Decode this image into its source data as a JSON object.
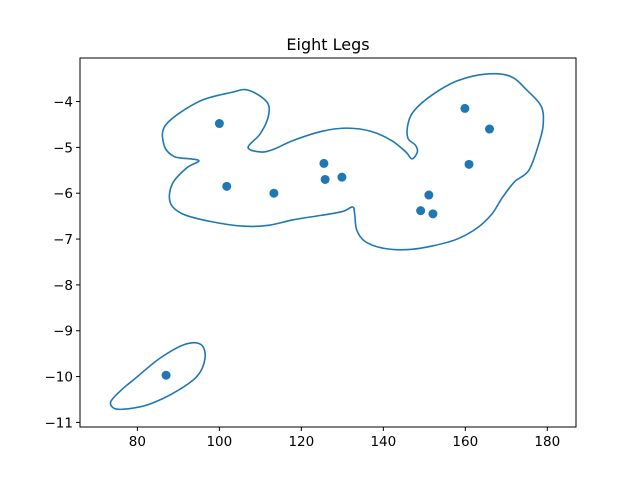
{
  "chart_data": {
    "type": "scatter",
    "title": "Eight Legs",
    "xlabel": "",
    "ylabel": "",
    "xlim": [
      66,
      187
    ],
    "ylim": [
      -11.1,
      -3.05
    ],
    "xticks": [
      80,
      100,
      120,
      140,
      160,
      180
    ],
    "yticks": [
      -4,
      -5,
      -6,
      -7,
      -8,
      -9,
      -10,
      -11
    ],
    "grid": false,
    "legend": "none",
    "colors": {
      "series": "#1f77b4",
      "axes": "#000000",
      "background": "#ffffff"
    },
    "points": [
      {
        "x": 87.0,
        "y": -9.97
      },
      {
        "x": 100.0,
        "y": -4.48
      },
      {
        "x": 101.8,
        "y": -5.85
      },
      {
        "x": 113.3,
        "y": -6.0
      },
      {
        "x": 125.5,
        "y": -5.35
      },
      {
        "x": 125.8,
        "y": -5.7
      },
      {
        "x": 129.9,
        "y": -5.65
      },
      {
        "x": 149.1,
        "y": -6.38
      },
      {
        "x": 151.1,
        "y": -6.04
      },
      {
        "x": 152.1,
        "y": -6.45
      },
      {
        "x": 159.9,
        "y": -4.15
      },
      {
        "x": 160.9,
        "y": -5.37
      },
      {
        "x": 165.9,
        "y": -4.6
      }
    ],
    "contours": [
      {
        "closed": true,
        "path": [
          [
            87,
            -4.5
          ],
          [
            95,
            -4.0
          ],
          [
            103,
            -3.8
          ],
          [
            107,
            -3.75
          ],
          [
            111.5,
            -4.0
          ],
          [
            112,
            -4.3
          ],
          [
            110,
            -4.7
          ],
          [
            107,
            -5.0
          ],
          [
            110,
            -5.1
          ],
          [
            113,
            -5.05
          ],
          [
            118,
            -4.85
          ],
          [
            125,
            -4.65
          ],
          [
            131,
            -4.58
          ],
          [
            137,
            -4.65
          ],
          [
            142,
            -4.85
          ],
          [
            145.5,
            -5.1
          ],
          [
            147,
            -5.25
          ],
          [
            148.3,
            -5.1
          ],
          [
            147.8,
            -4.95
          ],
          [
            146,
            -4.8
          ],
          [
            146,
            -4.5
          ],
          [
            147.5,
            -4.2
          ],
          [
            152,
            -3.85
          ],
          [
            158,
            -3.55
          ],
          [
            165,
            -3.4
          ],
          [
            171,
            -3.45
          ],
          [
            175,
            -3.75
          ],
          [
            178.5,
            -4.1
          ],
          [
            179,
            -4.5
          ],
          [
            178,
            -4.9
          ],
          [
            175.5,
            -5.5
          ],
          [
            172,
            -5.75
          ],
          [
            169,
            -6.1
          ],
          [
            166.5,
            -6.45
          ],
          [
            163,
            -6.75
          ],
          [
            158,
            -7.0
          ],
          [
            152,
            -7.15
          ],
          [
            146,
            -7.23
          ],
          [
            140,
            -7.2
          ],
          [
            135.5,
            -7.05
          ],
          [
            133.5,
            -6.8
          ],
          [
            133,
            -6.45
          ],
          [
            132.5,
            -6.3
          ],
          [
            130,
            -6.4
          ],
          [
            125,
            -6.48
          ],
          [
            118,
            -6.58
          ],
          [
            112,
            -6.7
          ],
          [
            106,
            -6.72
          ],
          [
            98,
            -6.62
          ],
          [
            91,
            -6.45
          ],
          [
            88,
            -6.2
          ],
          [
            88.5,
            -5.8
          ],
          [
            92,
            -5.45
          ],
          [
            95,
            -5.3
          ],
          [
            93,
            -5.25
          ],
          [
            89,
            -5.2
          ],
          [
            86.5,
            -4.95
          ],
          [
            87,
            -4.5
          ]
        ]
      },
      {
        "closed": true,
        "path": [
          [
            73.5,
            -10.55
          ],
          [
            76,
            -10.3
          ],
          [
            80,
            -10.0
          ],
          [
            85.5,
            -9.6
          ],
          [
            91.5,
            -9.3
          ],
          [
            95.5,
            -9.3
          ],
          [
            96.5,
            -9.6
          ],
          [
            94.5,
            -10.0
          ],
          [
            89,
            -10.35
          ],
          [
            83,
            -10.6
          ],
          [
            78,
            -10.7
          ],
          [
            74.5,
            -10.7
          ],
          [
            73.5,
            -10.55
          ]
        ]
      }
    ]
  }
}
